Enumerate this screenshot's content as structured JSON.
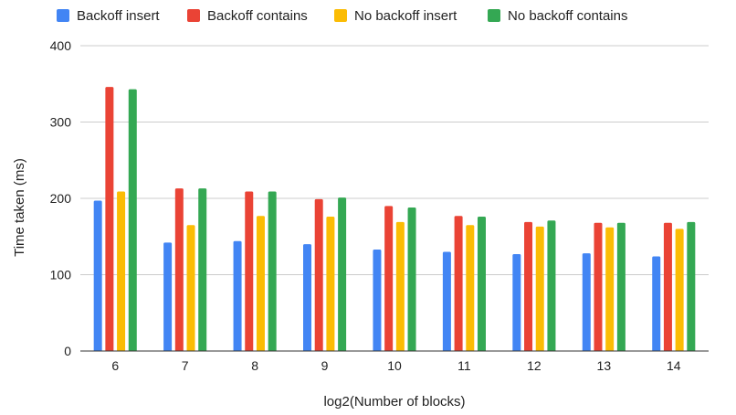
{
  "chart_data": {
    "type": "bar",
    "title": "",
    "xlabel": "log2(Number of blocks)",
    "ylabel": "Time taken (ms)",
    "ylim": [
      0,
      400
    ],
    "yticks": [
      0,
      100,
      200,
      300,
      400
    ],
    "grid": true,
    "legend": "top",
    "categories": [
      "6",
      "7",
      "8",
      "9",
      "10",
      "11",
      "12",
      "13",
      "14"
    ],
    "series": [
      {
        "name": "Backoff insert",
        "color": "#4285F4",
        "values": [
          197,
          142,
          144,
          140,
          133,
          130,
          127,
          128,
          124
        ]
      },
      {
        "name": "Backoff contains",
        "color": "#EA4335",
        "values": [
          346,
          213,
          209,
          199,
          190,
          177,
          169,
          168,
          168
        ]
      },
      {
        "name": "No backoff insert",
        "color": "#FBBC04",
        "values": [
          209,
          165,
          177,
          176,
          169,
          165,
          163,
          162,
          160
        ]
      },
      {
        "name": "No backoff contains",
        "color": "#34A853",
        "values": [
          343,
          213,
          209,
          201,
          188,
          176,
          171,
          168,
          169
        ]
      }
    ]
  }
}
